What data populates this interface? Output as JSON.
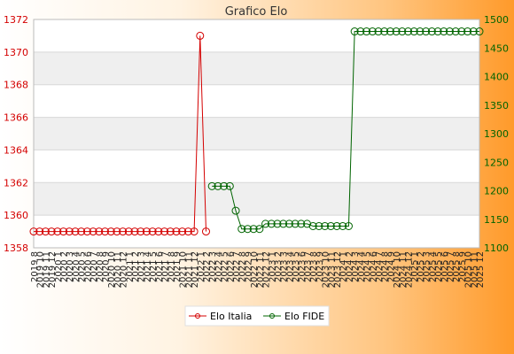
{
  "colors": {
    "left_axis": "#d40000",
    "right_axis": "#006400",
    "grid_band": "#efefef",
    "grid_line": "#d8d8d8"
  },
  "chart_data": {
    "type": "line",
    "title": "Grafico Elo",
    "x": [
      "2019 8",
      "2019 10",
      "2019 11",
      "2019 12",
      "2020 1",
      "2020 2",
      "2020 3",
      "2020 4",
      "2020 5",
      "2020 6",
      "2020 7",
      "2020 8",
      "2020 9",
      "2020 10",
      "2020 11",
      "2020 12",
      "2021 1",
      "2021 2",
      "2021 3",
      "2021 4",
      "2021 5",
      "2021 6",
      "2021 7",
      "2021 8",
      "2021 9",
      "2021 10",
      "2021 11",
      "2021 12",
      "2022 1",
      "2022 2",
      "2022 3",
      "2022 4",
      "2022 5",
      "2022 6",
      "2022 7",
      "2022 8",
      "2022 9",
      "2022 10",
      "2022 11",
      "2022 12",
      "2023 1",
      "2023 2",
      "2023 3",
      "2023 4",
      "2023 5",
      "2023 6",
      "2023 7",
      "2023 8",
      "2023 9",
      "2023 10",
      "2023 11",
      "2023 12",
      "2024 1",
      "2024 2",
      "2024 3",
      "2024 4",
      "2024 5",
      "2024 6",
      "2024 7",
      "2024 8",
      "2024 9",
      "2024 10",
      "2024 11",
      "2024 12",
      "2025 1",
      "2025 2",
      "2025 3",
      "2025 4",
      "2025 5",
      "2025 6",
      "2025 7",
      "2025 8",
      "2025 9",
      "2025 10",
      "2025 11",
      "2025 12"
    ],
    "y_left": {
      "ylim": [
        1358,
        1372
      ],
      "ticks": [
        1358,
        1360,
        1362,
        1364,
        1366,
        1368,
        1370,
        1372
      ]
    },
    "y_right": {
      "ylim": [
        1100,
        1500
      ],
      "ticks": [
        1100,
        1150,
        1200,
        1250,
        1300,
        1350,
        1400,
        1450,
        1500
      ]
    },
    "grid": true,
    "legend_position": "bottom-center",
    "series": [
      {
        "name": "Elo Italia",
        "axis": "left",
        "color": "#d40000",
        "values": [
          1359,
          1359,
          1359,
          1359,
          1359,
          1359,
          1359,
          1359,
          1359,
          1359,
          1359,
          1359,
          1359,
          1359,
          1359,
          1359,
          1359,
          1359,
          1359,
          1359,
          1359,
          1359,
          1359,
          1359,
          1359,
          1359,
          1359,
          1359,
          1371,
          1359,
          null,
          null,
          null,
          null,
          null,
          null,
          null,
          null,
          null,
          null,
          null,
          null,
          null,
          null,
          null,
          null,
          null,
          null,
          null,
          null,
          null,
          null,
          null,
          null,
          null,
          null,
          null,
          null,
          null,
          null,
          null,
          null,
          null,
          null,
          null,
          null,
          null,
          null,
          null,
          null,
          null,
          null,
          null,
          null,
          null,
          null
        ]
      },
      {
        "name": "Elo FIDE",
        "axis": "right",
        "color": "#006400",
        "values": [
          null,
          null,
          null,
          null,
          null,
          null,
          null,
          null,
          null,
          null,
          null,
          null,
          null,
          null,
          null,
          null,
          null,
          null,
          null,
          null,
          null,
          null,
          null,
          null,
          null,
          null,
          null,
          null,
          null,
          null,
          1208,
          1208,
          1208,
          1208,
          1165,
          1133,
          1133,
          1133,
          1133,
          1142,
          1142,
          1142,
          1142,
          1142,
          1142,
          1142,
          1142,
          1138,
          1138,
          1138,
          1138,
          1138,
          1138,
          1138,
          1479,
          1479,
          1479,
          1479,
          1479,
          1479,
          1479,
          1479,
          1479,
          1479,
          1479,
          1479,
          1479,
          1479,
          1479,
          1479,
          1479,
          1479,
          1479,
          1479,
          1479,
          1479
        ]
      }
    ]
  }
}
